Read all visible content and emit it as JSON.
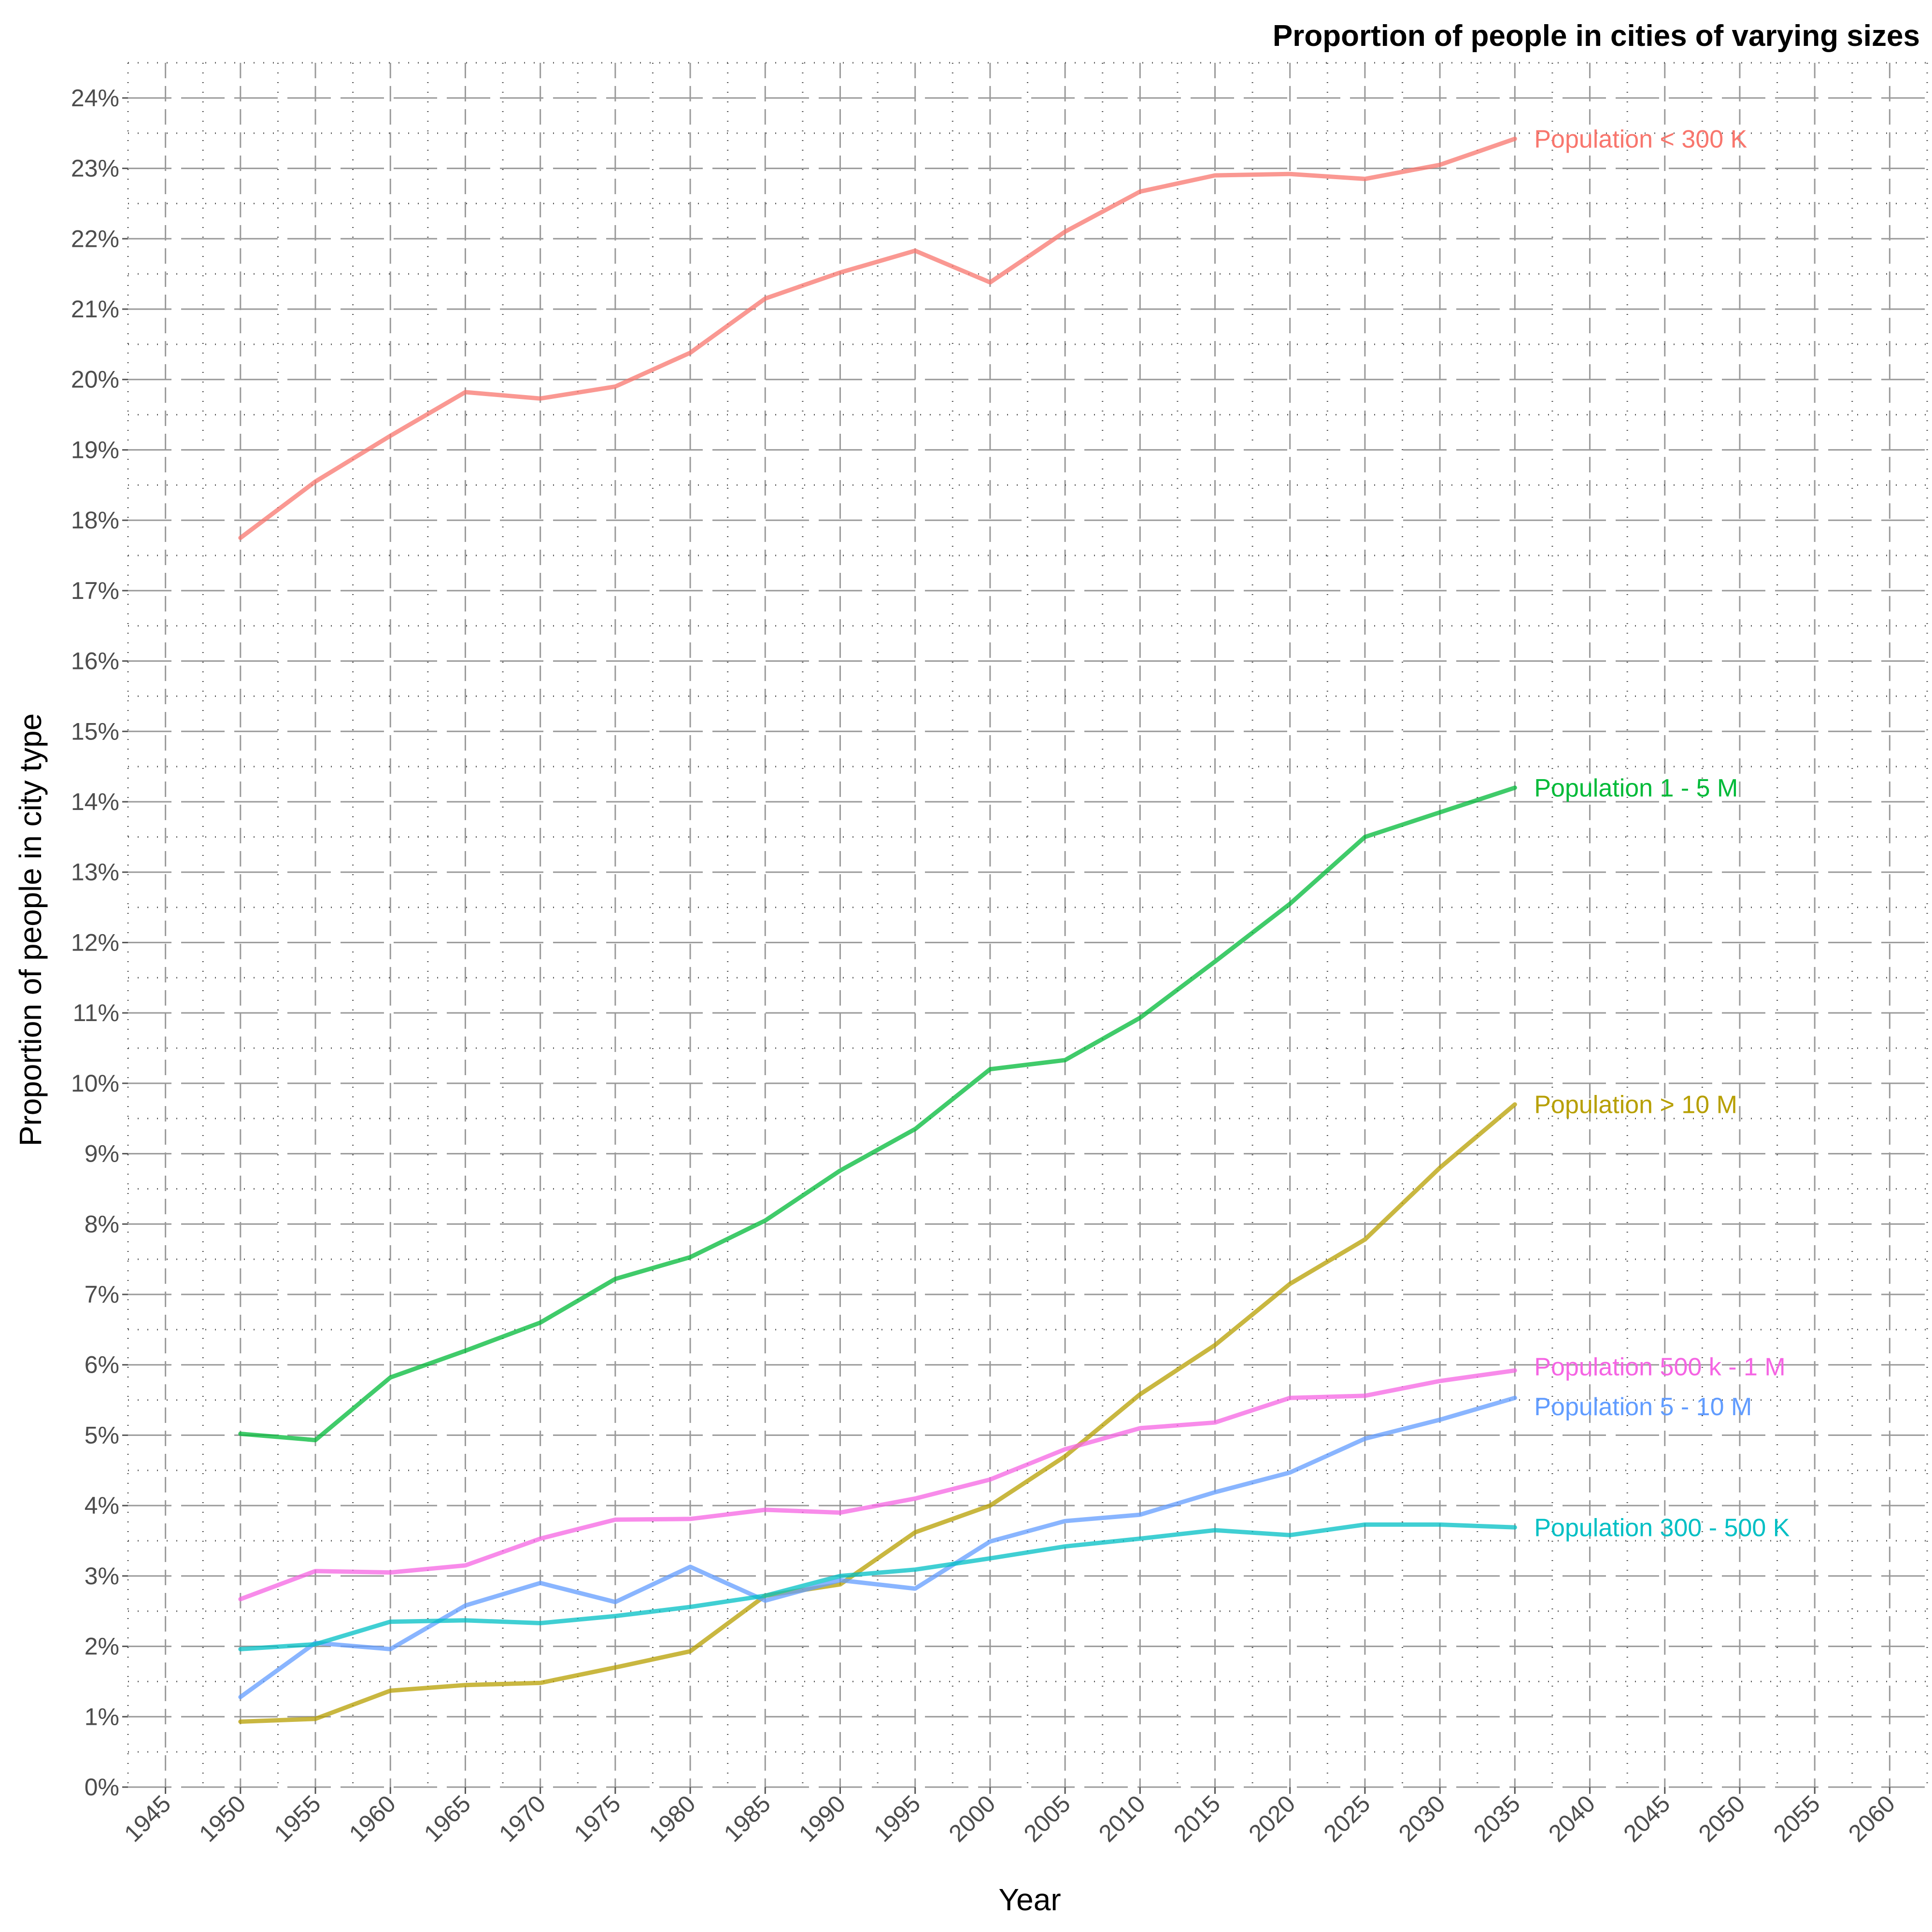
{
  "chart_data": {
    "type": "line",
    "title": "Proportion of people in cities of varying sizes",
    "xlabel": "Year",
    "ylabel": "Proportion of people in city type",
    "xlim": [
      1942.5,
      2062.5
    ],
    "ylim": [
      0,
      24.5
    ],
    "x_ticks": [
      1945,
      1950,
      1955,
      1960,
      1965,
      1970,
      1975,
      1980,
      1985,
      1990,
      1995,
      2000,
      2005,
      2010,
      2015,
      2020,
      2025,
      2030,
      2035,
      2040,
      2045,
      2050,
      2055,
      2060
    ],
    "x_tick_labels": [
      "1945",
      "1950",
      "1955",
      "1960",
      "1965",
      "1970",
      "1975",
      "1980",
      "1985",
      "1990",
      "1995",
      "2000",
      "2005",
      "2010",
      "2015",
      "2020",
      "2025",
      "2030",
      "2035",
      "2040",
      "2045",
      "2050",
      "2055",
      "2060"
    ],
    "y_ticks": [
      0,
      1,
      2,
      3,
      4,
      5,
      6,
      7,
      8,
      9,
      10,
      11,
      12,
      13,
      14,
      15,
      16,
      17,
      18,
      19,
      20,
      21,
      22,
      23,
      24
    ],
    "y_tick_labels": [
      "0%",
      "1%",
      "2%",
      "3%",
      "4%",
      "5%",
      "6%",
      "7%",
      "8%",
      "9%",
      "10%",
      "11%",
      "12%",
      "13%",
      "14%",
      "15%",
      "16%",
      "17%",
      "18%",
      "19%",
      "20%",
      "21%",
      "22%",
      "23%",
      "24%"
    ],
    "grid": true,
    "legend": "direct labels at line ends",
    "x": [
      1950,
      1955,
      1960,
      1965,
      1970,
      1975,
      1980,
      1985,
      1990,
      1995,
      2000,
      2005,
      2010,
      2015,
      2020,
      2025,
      2030,
      2035
    ],
    "series": [
      {
        "name": "Population < 300 K",
        "color": "#F8766D",
        "values": [
          17.75,
          18.55,
          19.2,
          19.82,
          19.73,
          19.9,
          20.38,
          21.15,
          21.52,
          21.83,
          21.38,
          22.1,
          22.67,
          22.9,
          22.92,
          22.85,
          23.05,
          23.42
        ]
      },
      {
        "name": "Population 1 - 5 M",
        "color": "#00BA38",
        "values": [
          5.02,
          4.93,
          5.82,
          6.2,
          6.6,
          7.22,
          7.53,
          8.05,
          8.76,
          9.35,
          10.2,
          10.33,
          10.93,
          11.73,
          12.55,
          13.5,
          13.85,
          14.2
        ]
      },
      {
        "name": "Population > 10 M",
        "color": "#B79F00",
        "values": [
          0.93,
          0.97,
          1.37,
          1.45,
          1.48,
          1.7,
          1.93,
          2.72,
          2.88,
          3.62,
          4.0,
          4.7,
          5.58,
          6.28,
          7.15,
          7.78,
          8.8,
          9.7
        ]
      },
      {
        "name": "Population 500 k - 1 M",
        "color": "#F564E3",
        "values": [
          2.67,
          3.07,
          3.05,
          3.15,
          3.53,
          3.8,
          3.81,
          3.94,
          3.9,
          4.1,
          4.37,
          4.8,
          5.1,
          5.18,
          5.53,
          5.56,
          5.77,
          5.92
        ]
      },
      {
        "name": "Population 5 - 10 M",
        "color": "#619CFF",
        "values": [
          1.28,
          2.05,
          1.96,
          2.58,
          2.9,
          2.63,
          3.13,
          2.65,
          2.94,
          2.82,
          3.49,
          3.78,
          3.87,
          4.19,
          4.47,
          4.95,
          5.22,
          5.53
        ]
      },
      {
        "name": "Population 300 - 500 K",
        "color": "#00BFC4",
        "values": [
          1.96,
          2.03,
          2.35,
          2.37,
          2.33,
          2.43,
          2.56,
          2.72,
          3.0,
          3.09,
          3.25,
          3.42,
          3.53,
          3.65,
          3.58,
          3.73,
          3.73,
          3.69
        ]
      }
    ]
  }
}
